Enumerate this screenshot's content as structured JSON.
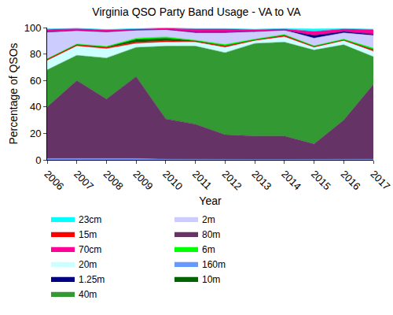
{
  "chart_data": {
    "type": "area",
    "title": "Virginia QSO Party Band Usage - VA to VA",
    "x_label": "Year",
    "y_label": "Percentage of QSOs",
    "x": [
      2006,
      2007,
      2008,
      2009,
      2010,
      2011,
      2012,
      2013,
      2014,
      2015,
      2016,
      2017
    ],
    "xlim": [
      2006,
      2017
    ],
    "xticks": [
      2006,
      2007,
      2008,
      2009,
      2010,
      2011,
      2012,
      2013,
      2014,
      2015,
      2016,
      2017
    ],
    "ylim": [
      0,
      100
    ],
    "yticks": [
      0,
      20,
      40,
      60,
      80,
      100
    ],
    "stacked": true,
    "grid": false,
    "legend": "bottom",
    "series": [
      {
        "name": "23cm",
        "color": "#00ffff",
        "values": [
          0.3,
          0.3,
          0.3,
          0.3,
          0.3,
          0.3,
          0.3,
          0.3,
          0.3,
          2,
          0.3,
          0.3
        ]
      },
      {
        "name": "70cm",
        "color": "#ff0099",
        "values": [
          2,
          1.5,
          1.5,
          1,
          1,
          2.5,
          2.5,
          1.5,
          1,
          3,
          2,
          3.5
        ]
      },
      {
        "name": "1.25m",
        "color": "#000080",
        "values": [
          0.2,
          0,
          0,
          0,
          0,
          0.5,
          0.5,
          0,
          0,
          2,
          1,
          1
        ]
      },
      {
        "name": "2m",
        "color": "#ccccff",
        "values": [
          20,
          10,
          11,
          6,
          5.5,
          5.5,
          8.7,
          5.7,
          3.2,
          5.7,
          4.7,
          9.5
        ]
      },
      {
        "name": "6m",
        "color": "#00ff00",
        "values": [
          0.3,
          0.5,
          0.5,
          1,
          1,
          0.5,
          1,
          0.5,
          0.5,
          0.5,
          0.5,
          1
        ]
      },
      {
        "name": "10m",
        "color": "#006400",
        "values": [
          0.2,
          0.2,
          0.3,
          2,
          2,
          0.5,
          0.3,
          0.3,
          0.3,
          0.3,
          0.3,
          0.5
        ]
      },
      {
        "name": "15m",
        "color": "#ff0000",
        "values": [
          1,
          1,
          1,
          1,
          1,
          0.5,
          1,
          0.5,
          1,
          0.5,
          0.5,
          1
        ]
      },
      {
        "name": "20m",
        "color": "#ccffff",
        "values": [
          7,
          7,
          7,
          3,
          3,
          3,
          4,
          2,
          4,
          2,
          3,
          4
        ]
      },
      {
        "name": "40m",
        "color": "#339933",
        "values": [
          28,
          19,
          31,
          22,
          55,
          59,
          62,
          70,
          71,
          71,
          57,
          21
        ]
      },
      {
        "name": "80m",
        "color": "#663366",
        "values": [
          39,
          59,
          45,
          62,
          30.5,
          26.7,
          18.7,
          17.7,
          17.7,
          11.5,
          29.5,
          56.5
        ]
      },
      {
        "name": "160m",
        "color": "#6699ff",
        "values": [
          1,
          1,
          1,
          1,
          0.5,
          0.3,
          0.3,
          0.3,
          0.3,
          0.5,
          0.5,
          0.5
        ]
      }
    ]
  }
}
